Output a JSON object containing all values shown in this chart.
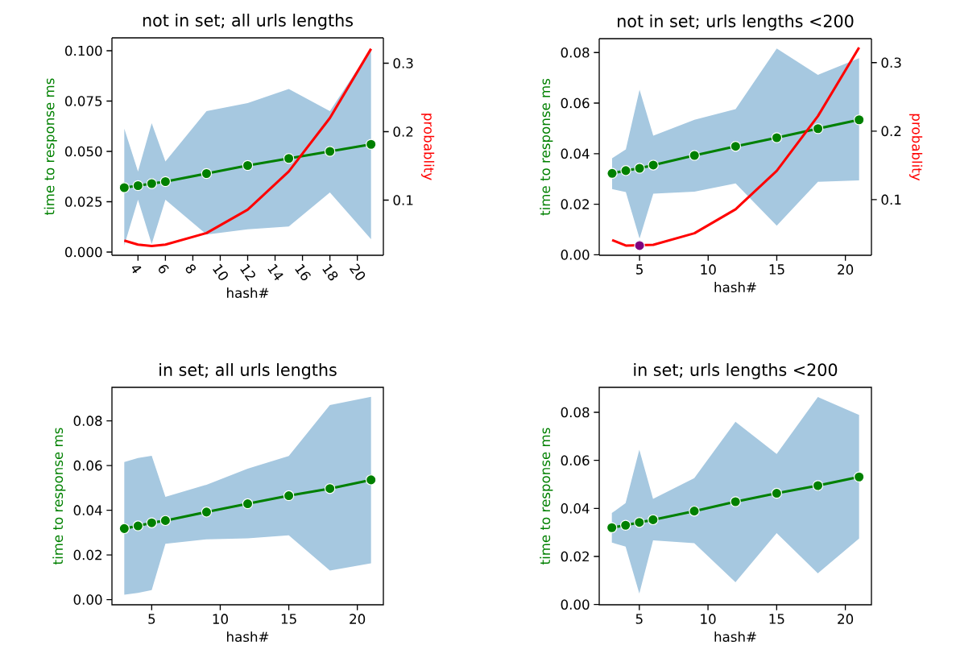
{
  "chart_data": [
    {
      "type": "line",
      "title": "not in set; all  urls lengths",
      "xlabel": "hash#",
      "ylabel": "time to response ms",
      "y2label": "probablity",
      "x": [
        3,
        4,
        5,
        6,
        9,
        12,
        15,
        18,
        21
      ],
      "xlim": [
        2.1,
        21.9
      ],
      "xticks": [
        4,
        6,
        8,
        10,
        12,
        14,
        16,
        18,
        20
      ],
      "ylim": [
        -0.0016,
        0.1064
      ],
      "yticks": [
        {
          "value": 0,
          "label": "0.000"
        },
        {
          "value": 0.025,
          "label": "0.025"
        },
        {
          "value": 0.05,
          "label": "0.050"
        },
        {
          "value": 0.075,
          "label": "0.075"
        },
        {
          "value": 0.1,
          "label": "0.100"
        }
      ],
      "y2lim": [
        0.0195,
        0.337
      ],
      "y2ticks": [
        0.1,
        0.2,
        0.3
      ],
      "series": [
        {
          "color": "#008000",
          "marker": "circle",
          "values": [
            0.032,
            0.033,
            0.034,
            0.035,
            0.039,
            0.043,
            0.0465,
            0.05,
            0.0535
          ],
          "lower": [
            0.0033,
            0.026,
            0.004,
            0.026,
            0.0087,
            0.0113,
            0.0127,
            0.0296,
            0.0064
          ],
          "upper": [
            0.0613,
            0.04,
            0.064,
            0.045,
            0.07,
            0.074,
            0.081,
            0.07,
            0.101
          ]
        },
        {
          "color": "#ff0000",
          "axis": "y2",
          "marker": "none",
          "values": [
            0.041,
            0.035,
            0.033,
            0.035,
            0.052,
            0.086,
            0.142,
            0.22,
            0.321
          ]
        }
      ]
    },
    {
      "type": "line",
      "title": "not in set;  urls lengths <200",
      "xlabel": "hash#",
      "ylabel": "time to response ms",
      "y2label": "probablity",
      "x": [
        3,
        4,
        5,
        6,
        9,
        12,
        15,
        18,
        21
      ],
      "xlim": [
        2.06,
        21.9
      ],
      "xticks": [
        5,
        10,
        15,
        20
      ],
      "ylim": [
        -0.0002,
        0.0855
      ],
      "yticks": [
        {
          "value": 0,
          "label": "0.00"
        },
        0.02,
        0.04,
        0.06,
        0.08
      ],
      "y2lim": [
        0.0188,
        0.335
      ],
      "y2ticks": [
        0.1,
        0.2,
        0.3
      ],
      "series": [
        {
          "color": "#008000",
          "marker": "circle",
          "values": [
            0.0322,
            0.0333,
            0.0342,
            0.0355,
            0.0393,
            0.0429,
            0.0463,
            0.0499,
            0.0534
          ],
          "lower": [
            0.026,
            0.0248,
            0.0064,
            0.0242,
            0.025,
            0.0282,
            0.0115,
            0.0289,
            0.0294
          ],
          "upper": [
            0.0382,
            0.0417,
            0.0653,
            0.0471,
            0.0534,
            0.0576,
            0.0816,
            0.0712,
            0.0778
          ]
        },
        {
          "color": "#ff0000",
          "axis": "y2",
          "marker": "none",
          "values": [
            0.041,
            0.033,
            null,
            0.034,
            0.051,
            0.086,
            0.142,
            0.222,
            0.322
          ]
        },
        {
          "type": "scatter",
          "color": "#800080",
          "axis": "y2",
          "marker": "circle",
          "x": [
            5
          ],
          "values": [
            0.033
          ]
        }
      ]
    },
    {
      "type": "line",
      "title": "in set;  all urls lengths",
      "xlabel": "hash#",
      "ylabel": "time to response ms",
      "x": [
        3,
        4,
        5,
        6,
        9,
        12,
        15,
        18,
        21
      ],
      "xlim": [
        2.1,
        21.9
      ],
      "xticks": [
        5,
        10,
        15,
        20
      ],
      "ylim": [
        -0.0023,
        0.095
      ],
      "yticks": [
        {
          "value": 0,
          "label": "0.00"
        },
        0.02,
        0.04,
        0.06,
        0.08
      ],
      "series": [
        {
          "color": "#008000",
          "marker": "circle",
          "values": [
            0.0318,
            0.033,
            0.0344,
            0.0354,
            0.0392,
            0.0429,
            0.0465,
            0.0497,
            0.0536
          ],
          "lower": [
            0.0022,
            0.003,
            0.0043,
            0.025,
            0.027,
            0.0274,
            0.0288,
            0.013,
            0.0163
          ],
          "upper": [
            0.0616,
            0.0634,
            0.0644,
            0.046,
            0.0514,
            0.0586,
            0.0643,
            0.0871,
            0.0908
          ]
        }
      ]
    },
    {
      "type": "line",
      "title": "in set;   urls lengths <200",
      "xlabel": "hash#",
      "ylabel": "time to response ms",
      "x": [
        3,
        4,
        5,
        6,
        9,
        12,
        15,
        18,
        21
      ],
      "xlim": [
        2.08,
        21.9
      ],
      "xticks": [
        5,
        10,
        15,
        20
      ],
      "ylim": [
        -0.0001,
        0.0904
      ],
      "yticks": [
        {
          "value": 0,
          "label": "0.00"
        },
        0.02,
        0.04,
        0.06,
        0.08
      ],
      "series": [
        {
          "color": "#008000",
          "marker": "circle",
          "values": [
            0.032,
            0.033,
            0.0342,
            0.0353,
            0.0389,
            0.0428,
            0.0463,
            0.0495,
            0.0531
          ],
          "lower": [
            0.0258,
            0.0241,
            0.0046,
            0.0267,
            0.0255,
            0.0093,
            0.0297,
            0.013,
            0.0275
          ],
          "upper": [
            0.0381,
            0.0422,
            0.0644,
            0.044,
            0.0526,
            0.0761,
            0.0627,
            0.0864,
            0.0789
          ]
        }
      ]
    }
  ]
}
